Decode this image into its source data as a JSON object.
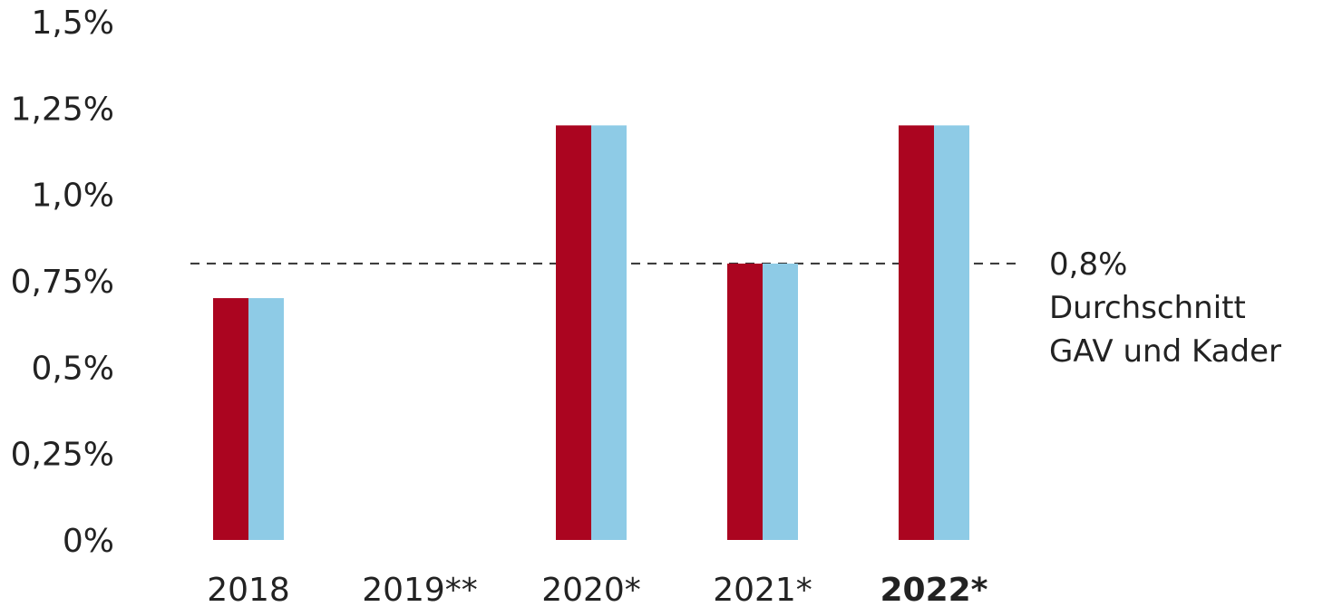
{
  "chart_data": {
    "type": "bar",
    "categories": [
      "2018",
      "2019**",
      "2020*",
      "2021*",
      "2022*"
    ],
    "emphasized_category": "2022*",
    "series": [
      {
        "values": [
          0.7,
          null,
          1.2,
          0.8,
          1.2
        ],
        "color": "#ab0520"
      },
      {
        "values": [
          0.7,
          null,
          1.2,
          0.8,
          1.2
        ],
        "color": "#8ecbe6"
      }
    ],
    "y_ticks": [
      "0%",
      "0,25%",
      "0,5%",
      "0,75%",
      "1,0%",
      "1,25%",
      "1,5%"
    ],
    "ylim": [
      0,
      1.5
    ],
    "grid": false,
    "reference_line": {
      "value": 0.8,
      "style": "dashed",
      "label_lines": [
        "0,8%",
        "Durchschnitt",
        "GAV und Kader"
      ]
    }
  }
}
